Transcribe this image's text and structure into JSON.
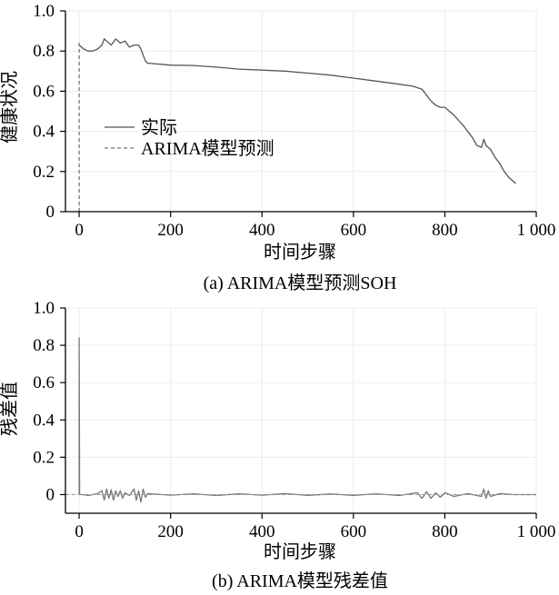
{
  "chart_data": [
    {
      "id": "a",
      "type": "line",
      "caption": "(a)  ARIMA模型预测SOH",
      "xlabel": "时间步骤",
      "ylabel": "健康状况",
      "xlim": [
        -30,
        1000
      ],
      "ylim": [
        0,
        1.0
      ],
      "x_ticks": [
        0,
        200,
        400,
        600,
        800,
        1000
      ],
      "x_tick_labels": [
        "0",
        "200",
        "400",
        "600",
        "800",
        "1 000"
      ],
      "y_ticks": [
        0,
        0.2,
        0.4,
        0.6,
        0.8,
        1.0
      ],
      "y_tick_labels": [
        "0",
        "0.2",
        "0.4",
        "0.6",
        "0.8",
        "1.0"
      ],
      "grid": true,
      "legend_position": "left-middle",
      "series": [
        {
          "name": "实际",
          "style": "solid",
          "color": "#555555",
          "x": [
            0,
            10,
            20,
            30,
            40,
            50,
            55,
            60,
            70,
            80,
            90,
            100,
            110,
            120,
            130,
            135,
            140,
            145,
            150,
            200,
            250,
            300,
            350,
            400,
            450,
            500,
            550,
            600,
            650,
            700,
            730,
            750,
            760,
            770,
            780,
            790,
            800,
            820,
            840,
            860,
            870,
            880,
            885,
            890,
            900,
            910,
            920,
            930,
            940,
            950,
            955
          ],
          "y": [
            0.83,
            0.81,
            0.8,
            0.8,
            0.81,
            0.83,
            0.86,
            0.85,
            0.83,
            0.86,
            0.84,
            0.85,
            0.82,
            0.83,
            0.83,
            0.81,
            0.78,
            0.75,
            0.74,
            0.73,
            0.728,
            0.72,
            0.71,
            0.705,
            0.7,
            0.69,
            0.68,
            0.665,
            0.65,
            0.635,
            0.625,
            0.61,
            0.58,
            0.55,
            0.53,
            0.52,
            0.52,
            0.48,
            0.43,
            0.37,
            0.33,
            0.32,
            0.36,
            0.33,
            0.31,
            0.27,
            0.24,
            0.2,
            0.17,
            0.15,
            0.14
          ]
        },
        {
          "name": "ARIMA模型预测",
          "style": "dashed",
          "color": "#777777",
          "x": [
            0,
            0
          ],
          "y": [
            0.0,
            0.85
          ]
        }
      ]
    },
    {
      "id": "b",
      "type": "line",
      "caption": "(b)  ARIMA模型残差值",
      "xlabel": "时间步骤",
      "ylabel": "残差值",
      "xlim": [
        -30,
        1000
      ],
      "ylim": [
        -0.1,
        1.0
      ],
      "x_ticks": [
        0,
        200,
        400,
        600,
        800,
        1000
      ],
      "x_tick_labels": [
        "0",
        "200",
        "400",
        "600",
        "800",
        "1 000"
      ],
      "y_ticks": [
        0,
        0.2,
        0.4,
        0.6,
        0.8,
        1.0
      ],
      "y_tick_labels": [
        "0",
        "0.2",
        "0.4",
        "0.6",
        "0.8",
        "1.0"
      ],
      "grid": true,
      "series": [
        {
          "name": "残差",
          "style": "solid",
          "color": "#777777",
          "x": [
            0,
            0,
            1,
            10,
            20,
            40,
            50,
            55,
            60,
            65,
            70,
            75,
            80,
            85,
            90,
            95,
            100,
            110,
            120,
            125,
            130,
            135,
            140,
            145,
            150,
            200,
            250,
            300,
            350,
            400,
            450,
            500,
            550,
            600,
            650,
            700,
            740,
            750,
            760,
            770,
            780,
            790,
            800,
            820,
            850,
            880,
            885,
            890,
            895,
            900,
            920,
            950,
            1000
          ],
          "y": [
            0,
            0.84,
            0,
            0,
            -0.005,
            0.005,
            0.02,
            -0.03,
            0.03,
            -0.02,
            0.025,
            -0.03,
            0.02,
            -0.01,
            0.02,
            -0.02,
            0.01,
            -0.005,
            0.03,
            -0.03,
            0.02,
            -0.04,
            0.03,
            -0.015,
            0.005,
            -0.003,
            0.004,
            -0.005,
            0.004,
            -0.003,
            0.005,
            -0.004,
            0.003,
            -0.004,
            0.004,
            -0.005,
            0.01,
            -0.02,
            0.015,
            -0.02,
            0.01,
            -0.015,
            0.01,
            -0.01,
            0.005,
            -0.01,
            0.03,
            -0.02,
            0.02,
            -0.01,
            0.005,
            0,
            0
          ]
        }
      ]
    }
  ]
}
